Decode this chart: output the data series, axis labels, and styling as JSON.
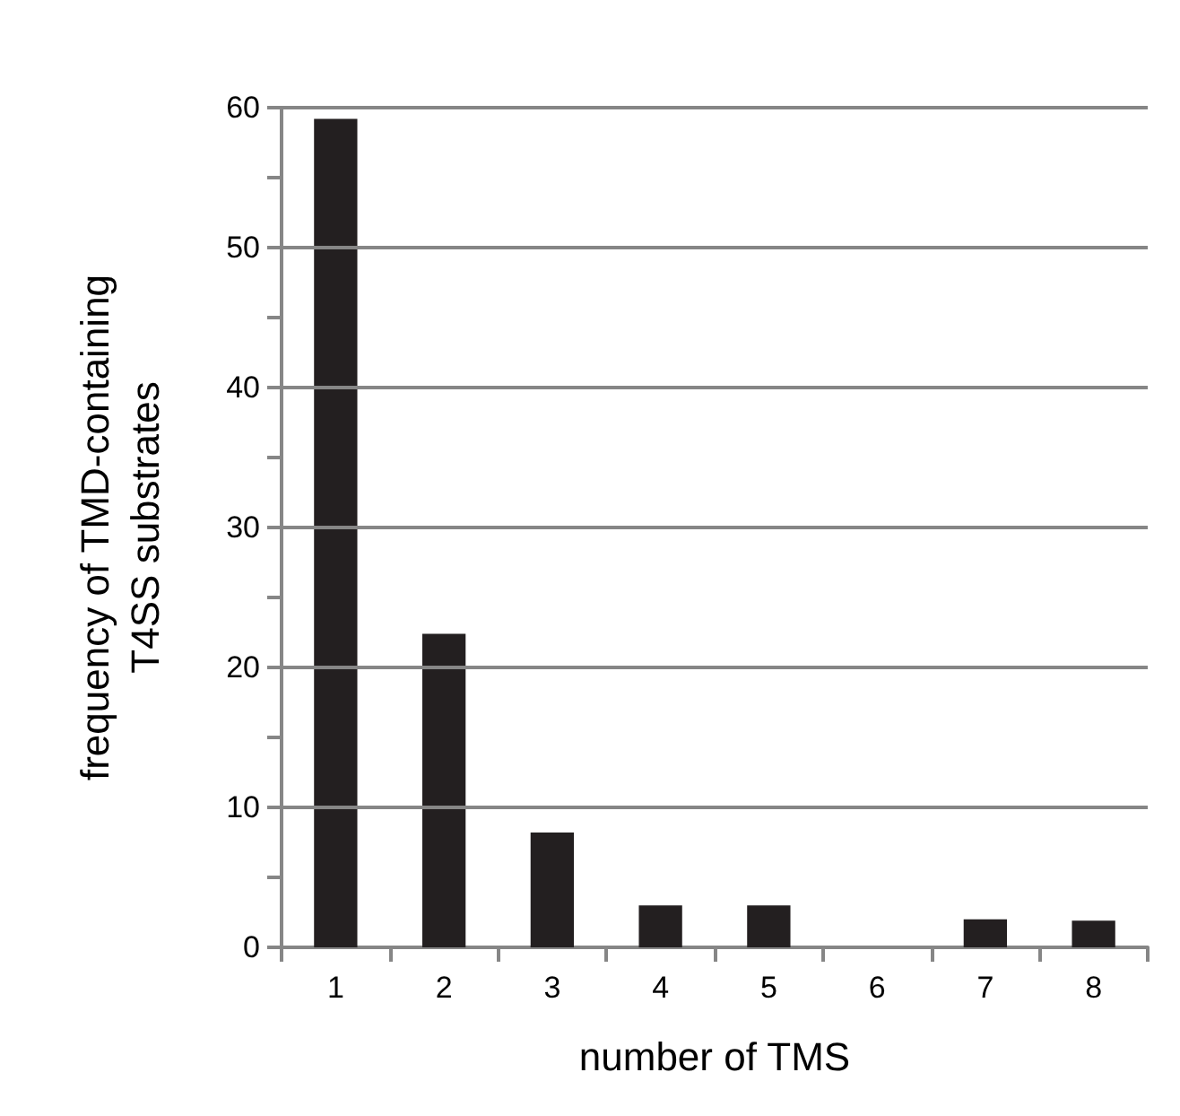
{
  "chart_data": {
    "type": "bar",
    "xlabel": "number of TMS",
    "ylabel": "frequency of TMD-containing T4SS substrates",
    "categories": [
      "1",
      "2",
      "3",
      "4",
      "5",
      "6",
      "7",
      "8"
    ],
    "values": [
      59.2,
      22.4,
      8.2,
      3,
      3,
      0,
      2,
      1.9
    ],
    "color": "#231f20",
    "ylim": [
      0,
      60
    ],
    "yticks": [
      0,
      {
        "value": 5,
        "label": null
      },
      10,
      {
        "value": 15,
        "label": null
      },
      20,
      {
        "value": 25,
        "label": null
      },
      30,
      {
        "value": 35,
        "label": null
      },
      40,
      {
        "value": 45,
        "label": null
      },
      50,
      {
        "value": 55,
        "label": null
      },
      60
    ],
    "grid": "y"
  }
}
